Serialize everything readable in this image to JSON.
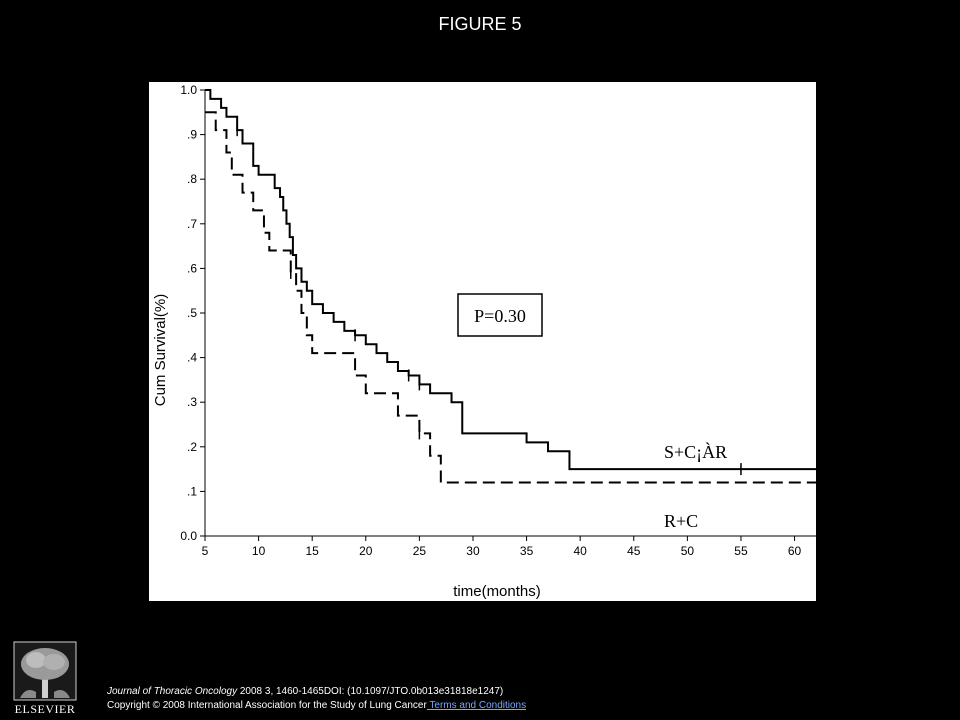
{
  "slide": {
    "title": "FIGURE 5"
  },
  "footer": {
    "journal": "Journal of Thoracic Oncology",
    "citation": " 2008 3, 1460-1465DOI: (10.1097/JTO.0b013e31818e1247)",
    "copyright": "Copyright © 2008 International Association for the Study of Lung Cancer",
    "terms_link": " Terms and Conditions",
    "link_color": "#7aa7ff"
  },
  "logo": {
    "wordmark": "ELSEVIER",
    "icon": "elsevier-tree-logo"
  },
  "chart_data": {
    "type": "line",
    "step": true,
    "xlabel": "time(months)",
    "ylabel": "Cum Survival(%)",
    "xlim": [
      5,
      62
    ],
    "ylim": [
      0,
      1.0
    ],
    "x_ticks": [
      "5",
      "10",
      "15",
      "20",
      "25",
      "30",
      "35",
      "40",
      "45",
      "50",
      "55",
      "60"
    ],
    "y_ticks": [
      "0.0",
      ".1",
      ".2",
      ".3",
      ".4",
      ".5",
      ".6",
      ".7",
      ".8",
      ".9",
      "1.0"
    ],
    "annotation": "P=0.30",
    "grid": false,
    "series": [
      {
        "name": "S+C¡ÀR",
        "style": "solid",
        "color": "#000000",
        "points": [
          [
            5,
            1.0
          ],
          [
            5.5,
            0.98
          ],
          [
            6.5,
            0.96
          ],
          [
            7,
            0.94
          ],
          [
            8,
            0.91
          ],
          [
            8.5,
            0.88
          ],
          [
            9.5,
            0.83
          ],
          [
            10,
            0.81
          ],
          [
            11,
            0.81
          ],
          [
            11.5,
            0.78
          ],
          [
            12,
            0.76
          ],
          [
            12.3,
            0.73
          ],
          [
            12.6,
            0.7
          ],
          [
            12.9,
            0.67
          ],
          [
            13.2,
            0.63
          ],
          [
            13.5,
            0.6
          ],
          [
            14,
            0.57
          ],
          [
            14.5,
            0.55
          ],
          [
            15,
            0.52
          ],
          [
            16,
            0.5
          ],
          [
            17,
            0.48
          ],
          [
            18,
            0.46
          ],
          [
            19,
            0.45
          ],
          [
            20,
            0.43
          ],
          [
            21,
            0.41
          ],
          [
            22,
            0.39
          ],
          [
            23,
            0.37
          ],
          [
            24,
            0.36
          ],
          [
            25,
            0.34
          ],
          [
            26,
            0.32
          ],
          [
            28,
            0.3
          ],
          [
            29,
            0.23
          ],
          [
            31,
            0.23
          ],
          [
            33,
            0.23
          ],
          [
            35,
            0.21
          ],
          [
            37,
            0.19
          ],
          [
            39,
            0.15
          ],
          [
            55,
            0.15
          ],
          [
            62,
            0.15
          ]
        ],
        "censor_x": [
          8,
          19,
          24,
          25,
          55
        ]
      },
      {
        "name": "R+C",
        "style": "dashed",
        "color": "#000000",
        "points": [
          [
            5,
            0.95
          ],
          [
            6,
            0.91
          ],
          [
            7,
            0.86
          ],
          [
            7.5,
            0.81
          ],
          [
            8.5,
            0.77
          ],
          [
            9.5,
            0.73
          ],
          [
            10.5,
            0.68
          ],
          [
            11,
            0.64
          ],
          [
            12.5,
            0.64
          ],
          [
            13,
            0.59
          ],
          [
            13.5,
            0.55
          ],
          [
            14,
            0.5
          ],
          [
            14.5,
            0.45
          ],
          [
            15,
            0.41
          ],
          [
            19,
            0.36
          ],
          [
            20,
            0.32
          ],
          [
            22,
            0.32
          ],
          [
            23,
            0.27
          ],
          [
            24,
            0.27
          ],
          [
            25,
            0.23
          ],
          [
            26,
            0.18
          ],
          [
            27,
            0.12
          ],
          [
            62,
            0.12
          ]
        ],
        "censor_x": [
          13,
          25
        ]
      }
    ]
  }
}
